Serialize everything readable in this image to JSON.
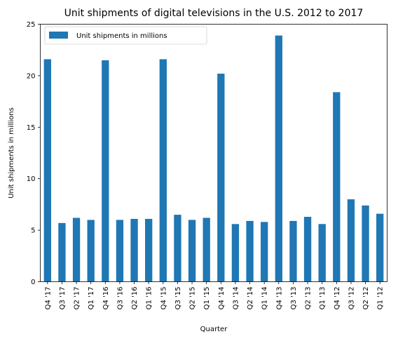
{
  "chart_data": {
    "type": "bar",
    "title": "Unit shipments of digital televisions in the U.S. 2012 to 2017",
    "xlabel": "Quarter",
    "ylabel": "Unit shipments in millions",
    "ylim": [
      0,
      25
    ],
    "yticks": [
      0,
      5,
      10,
      15,
      20,
      25
    ],
    "grid": false,
    "legend_position": "top-left",
    "categories": [
      "Q4 '17",
      "Q3 '17",
      "Q2 '17",
      "Q1 '17",
      "Q4 '16",
      "Q3 '16",
      "Q2 '16",
      "Q1 '16",
      "Q4 '15",
      "Q3 '15",
      "Q2 '15",
      "Q1 '15",
      "Q4 '14",
      "Q3 '14",
      "Q2 '14",
      "Q1 '14",
      "Q4 '13",
      "Q3 '13",
      "Q2 '13",
      "Q1 '13",
      "Q4 '12",
      "Q3 '12",
      "Q2 '12",
      "Q1 '12"
    ],
    "series": [
      {
        "name": "Unit shipments in millions",
        "color": "#1f77b4",
        "values": [
          21.6,
          5.7,
          6.2,
          6.0,
          21.5,
          6.0,
          6.1,
          6.1,
          21.6,
          6.5,
          6.0,
          6.2,
          20.2,
          5.6,
          5.9,
          5.8,
          23.9,
          5.9,
          6.3,
          5.6,
          18.4,
          8.0,
          7.4,
          6.6
        ]
      }
    ]
  }
}
